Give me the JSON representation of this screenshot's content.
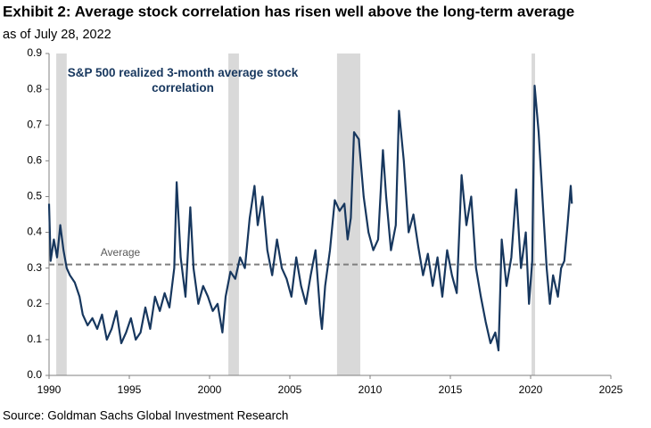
{
  "chart_data": {
    "type": "line",
    "title": "Exhibit 2: Average stock correlation has risen well above the long-term average",
    "subtitle": "as of July 28, 2022",
    "source": "Source: Goldman Sachs Global Investment Research",
    "xlim": [
      1990,
      2025
    ],
    "xticks": [
      1990,
      1995,
      2000,
      2005,
      2010,
      2015,
      2020,
      2025
    ],
    "ylim": [
      0,
      0.9
    ],
    "yticks": [
      {
        "value": 0,
        "label": "0.0"
      },
      0.1,
      0.2,
      0.3,
      0.4,
      0.5,
      0.6,
      0.7,
      0.8,
      0.9
    ],
    "shaded_regions": [
      [
        1990.45,
        1991.1
      ],
      [
        2001.17,
        2001.83
      ],
      [
        2007.94,
        2009.39
      ],
      [
        2020.06,
        2020.28
      ]
    ],
    "shade_color": "#d9d9d9",
    "reference_line": {
      "label": "Average",
      "value": 0.31,
      "color": "#7f7f7f"
    },
    "x": [
      1990.0,
      1990.1,
      1990.3,
      1990.5,
      1990.7,
      1990.9,
      1991.1,
      1991.3,
      1991.6,
      1991.9,
      1992.1,
      1992.4,
      1992.7,
      1993.0,
      1993.3,
      1993.6,
      1993.9,
      1994.2,
      1994.5,
      1994.8,
      1995.1,
      1995.4,
      1995.7,
      1996.0,
      1996.3,
      1996.6,
      1996.9,
      1997.2,
      1997.5,
      1997.8,
      1997.95,
      1998.2,
      1998.5,
      1998.8,
      1999.0,
      1999.3,
      1999.6,
      1999.9,
      2000.2,
      2000.5,
      2000.8,
      2001.0,
      2001.3,
      2001.6,
      2001.9,
      2002.2,
      2002.5,
      2002.8,
      2003.0,
      2003.3,
      2003.6,
      2003.9,
      2004.2,
      2004.5,
      2004.8,
      2005.1,
      2005.4,
      2005.7,
      2006.0,
      2006.3,
      2006.6,
      2006.9,
      2007.0,
      2007.2,
      2007.5,
      2007.8,
      2008.1,
      2008.4,
      2008.6,
      2008.8,
      2009.0,
      2009.3,
      2009.6,
      2009.9,
      2010.2,
      2010.5,
      2010.8,
      2011.0,
      2011.3,
      2011.6,
      2011.8,
      2012.1,
      2012.4,
      2012.7,
      2013.0,
      2013.3,
      2013.6,
      2013.9,
      2014.2,
      2014.5,
      2014.8,
      2015.1,
      2015.4,
      2015.7,
      2016.0,
      2016.3,
      2016.6,
      2016.9,
      2017.2,
      2017.5,
      2017.8,
      2018.0,
      2018.2,
      2018.5,
      2018.8,
      2019.1,
      2019.4,
      2019.7,
      2019.9,
      2020.1,
      2020.25,
      2020.5,
      2020.8,
      2021.0,
      2021.2,
      2021.4,
      2021.7,
      2021.9,
      2022.1,
      2022.3,
      2022.5,
      2022.57
    ],
    "series": [
      {
        "name": "S&P 500 realized 3-month average stock correlation",
        "color": "#17375e",
        "values": [
          0.48,
          0.32,
          0.38,
          0.33,
          0.42,
          0.35,
          0.3,
          0.28,
          0.26,
          0.22,
          0.17,
          0.14,
          0.16,
          0.13,
          0.17,
          0.1,
          0.13,
          0.18,
          0.09,
          0.12,
          0.16,
          0.1,
          0.12,
          0.19,
          0.13,
          0.22,
          0.18,
          0.23,
          0.19,
          0.3,
          0.54,
          0.33,
          0.22,
          0.47,
          0.3,
          0.2,
          0.25,
          0.22,
          0.18,
          0.2,
          0.12,
          0.22,
          0.29,
          0.27,
          0.33,
          0.3,
          0.44,
          0.53,
          0.42,
          0.5,
          0.35,
          0.28,
          0.38,
          0.3,
          0.27,
          0.22,
          0.33,
          0.25,
          0.2,
          0.28,
          0.35,
          0.17,
          0.13,
          0.25,
          0.35,
          0.49,
          0.46,
          0.48,
          0.38,
          0.44,
          0.68,
          0.66,
          0.5,
          0.4,
          0.35,
          0.38,
          0.63,
          0.5,
          0.35,
          0.42,
          0.74,
          0.6,
          0.4,
          0.45,
          0.36,
          0.28,
          0.34,
          0.25,
          0.33,
          0.22,
          0.35,
          0.28,
          0.23,
          0.56,
          0.42,
          0.5,
          0.3,
          0.22,
          0.15,
          0.09,
          0.12,
          0.07,
          0.38,
          0.25,
          0.33,
          0.52,
          0.3,
          0.4,
          0.2,
          0.32,
          0.81,
          0.68,
          0.45,
          0.3,
          0.2,
          0.28,
          0.22,
          0.3,
          0.32,
          0.42,
          0.53,
          0.48
        ]
      }
    ]
  }
}
